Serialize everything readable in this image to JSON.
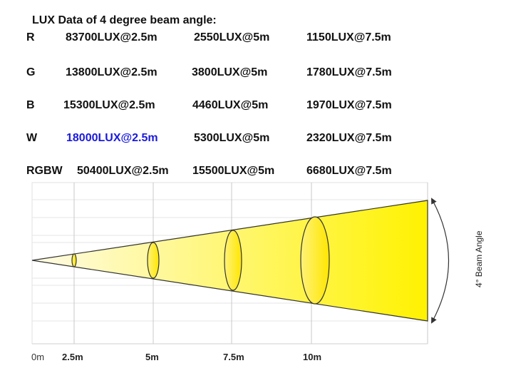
{
  "title": "LUX Data of 4 degree beam angle:",
  "rows": [
    {
      "color": "R",
      "v1": "83700LUX@2.5m",
      "v2": "2550LUX@5m",
      "v3": "1150LUX@7.5m"
    },
    {
      "color": "G",
      "v1": "13800LUX@2.5m",
      "v2": "3800LUX@5m",
      "v3": "1780LUX@7.5m"
    },
    {
      "color": "B",
      "v1": "15300LUX@2.5m",
      "v2": "4460LUX@5m",
      "v3": "1970LUX@7.5m"
    },
    {
      "color": "W",
      "v1": "18000LUX@2.5m",
      "v2": "5300LUX@5m",
      "v3": "2320LUX@7.5m"
    },
    {
      "color": "RGBW",
      "v1": "50400LUX@2.5m",
      "v2": "15500LUX@5m",
      "v3": "6680LUX@7.5m"
    }
  ],
  "diagram": {
    "distances": [
      "0m",
      "2.5m",
      "5m",
      "7.5m",
      "10m"
    ],
    "beam_angle_label": "4° Beam Angle",
    "colors": {
      "beam_near": "#fffbe6",
      "beam_far": "#fff200",
      "outline": "#333333",
      "highlight_text": "#1a1adc"
    }
  }
}
